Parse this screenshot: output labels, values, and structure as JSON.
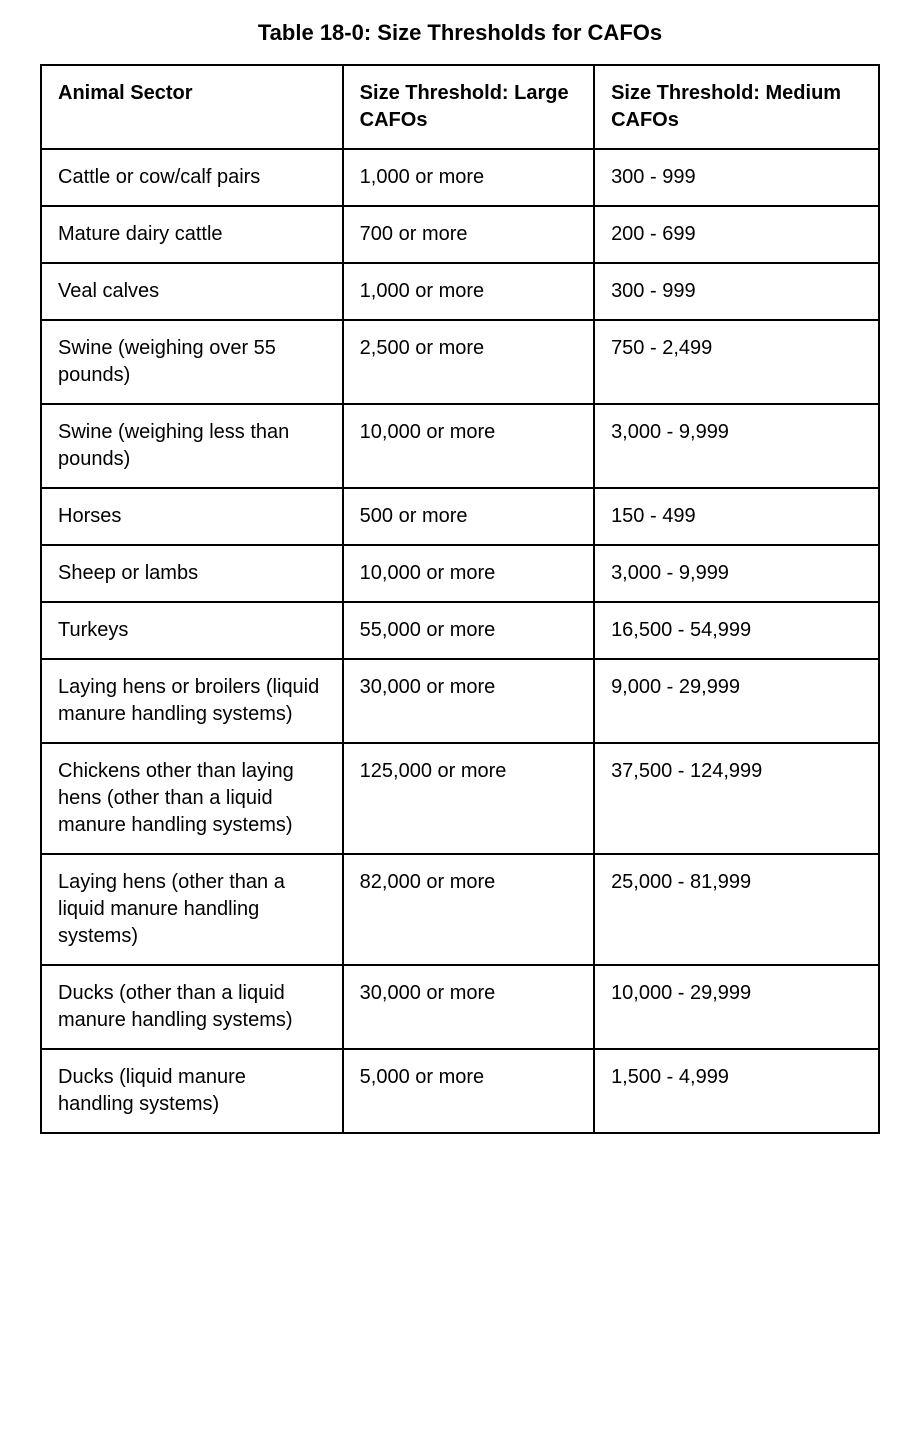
{
  "title": "Table 18-0: Size Thresholds for CAFOs",
  "columns": [
    "Animal Sector",
    "Size Threshold: Large CAFOs",
    "Size Threshold: Medium CAFOs"
  ],
  "rows": [
    [
      "Cattle or cow/calf pairs",
      "1,000 or more",
      "300 - 999"
    ],
    [
      "Mature dairy cattle",
      "700 or more",
      "200 - 699"
    ],
    [
      "Veal calves",
      "1,000 or more",
      "300 - 999"
    ],
    [
      "Swine (weighing over 55 pounds)",
      "2,500 or more",
      "750 - 2,499"
    ],
    [
      "Swine (weighing less than pounds)",
      "10,000 or more",
      "3,000 - 9,999"
    ],
    [
      "Horses",
      "500 or more",
      "150 - 499"
    ],
    [
      "Sheep or lambs",
      "10,000 or more",
      "3,000 - 9,999"
    ],
    [
      "Turkeys",
      "55,000 or more",
      "16,500 - 54,999"
    ],
    [
      "Laying hens or broilers (liquid manure handling systems)",
      "30,000 or more",
      "9,000 - 29,999"
    ],
    [
      "Chickens other than laying hens (other than a liquid manure handling systems)",
      "125,000 or more",
      "37,500 - 124,999"
    ],
    [
      "Laying hens (other than a liquid manure handling systems)",
      "82,000 or more",
      "25,000 - 81,999"
    ],
    [
      "Ducks (other than a liquid manure handling systems)",
      "30,000 or more",
      "10,000 - 29,999"
    ],
    [
      "Ducks (liquid manure handling systems)",
      "5,000 or more",
      "1,500 - 4,999"
    ]
  ]
}
